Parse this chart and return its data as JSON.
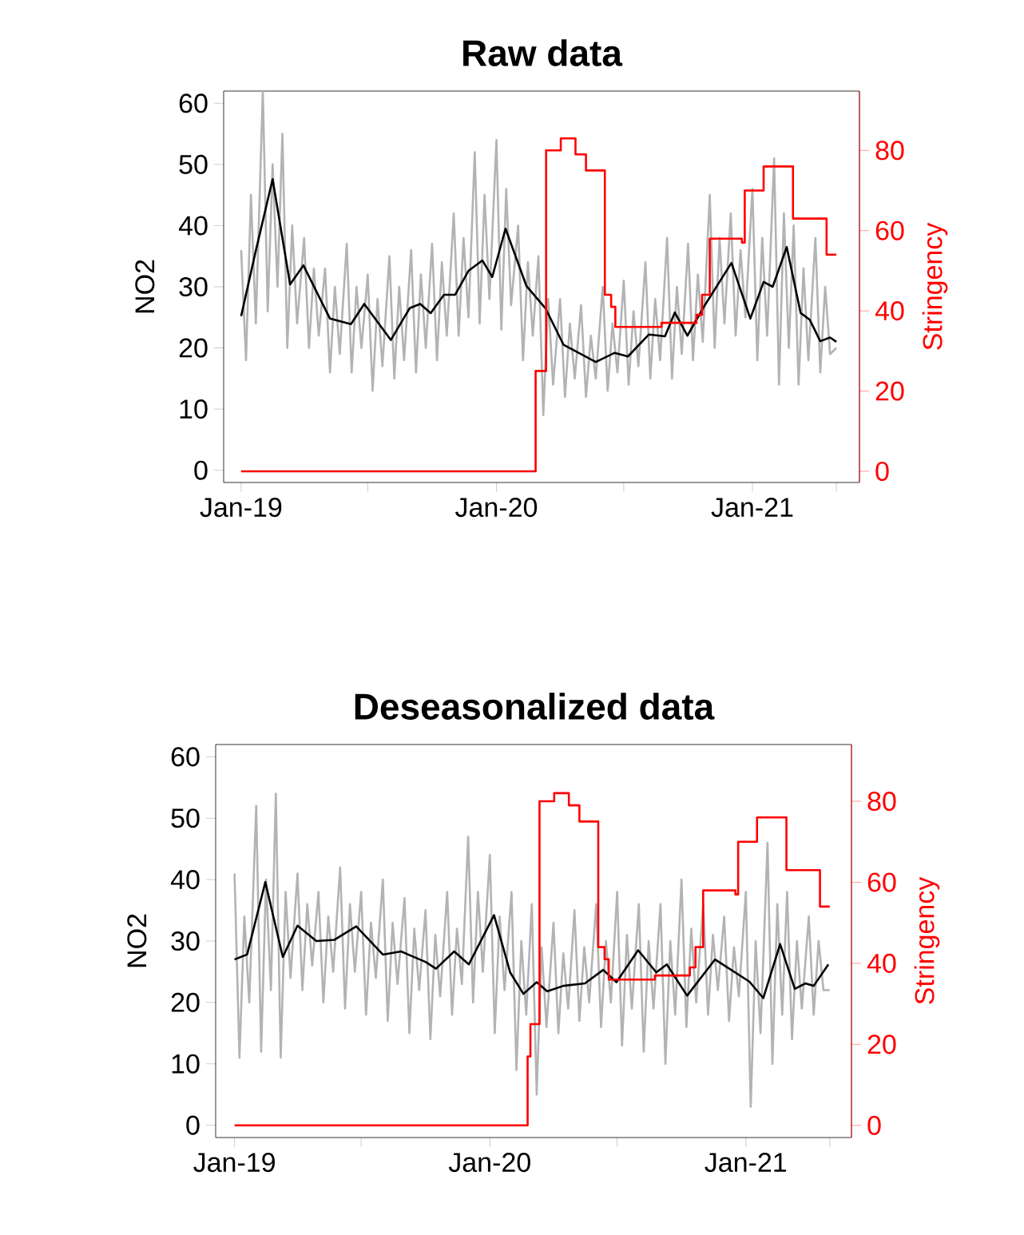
{
  "chart_data": [
    {
      "type": "line",
      "title": "Raw data",
      "ylabel": "NO2",
      "y2label": "Stringency",
      "xlim": [
        "2018-12-07",
        "2021-06-03"
      ],
      "xticks": [
        {
          "value": "2019-01-01",
          "label": "Jan-19"
        },
        {
          "value": "2019-07-01",
          "label": null
        },
        {
          "value": "2020-01-01",
          "label": "Jan-20"
        },
        {
          "value": "2020-07-01",
          "label": null
        },
        {
          "value": "2021-01-01",
          "label": "Jan-21"
        },
        {
          "value": "2021-05-01",
          "label": null
        }
      ],
      "ylim": [
        -2,
        62
      ],
      "yticks": [
        0,
        10,
        20,
        30,
        40,
        50,
        60
      ],
      "y2lim": [
        -2.8,
        94.8
      ],
      "y2ticks": [
        0,
        20,
        40,
        60,
        80
      ],
      "x": [
        "2019-01-01",
        "2019-01-08",
        "2019-01-15",
        "2019-01-22",
        "2019-02-01",
        "2019-02-08",
        "2019-02-15",
        "2019-02-22",
        "2019-03-01",
        "2019-03-08",
        "2019-03-15",
        "2019-03-22",
        "2019-04-01",
        "2019-04-08",
        "2019-04-15",
        "2019-04-22",
        "2019-05-01",
        "2019-05-08",
        "2019-05-15",
        "2019-05-22",
        "2019-06-01",
        "2019-06-08",
        "2019-06-15",
        "2019-06-22",
        "2019-07-01",
        "2019-07-08",
        "2019-07-15",
        "2019-07-22",
        "2019-08-01",
        "2019-08-08",
        "2019-08-15",
        "2019-08-22",
        "2019-09-01",
        "2019-09-08",
        "2019-09-15",
        "2019-09-22",
        "2019-10-01",
        "2019-10-08",
        "2019-10-15",
        "2019-10-22",
        "2019-11-01",
        "2019-11-08",
        "2019-11-15",
        "2019-11-22",
        "2019-12-01",
        "2019-12-08",
        "2019-12-15",
        "2019-12-22",
        "2020-01-01",
        "2020-01-08",
        "2020-01-15",
        "2020-01-22",
        "2020-02-01",
        "2020-02-08",
        "2020-02-15",
        "2020-02-22",
        "2020-03-01",
        "2020-03-08",
        "2020-03-15",
        "2020-03-22",
        "2020-04-01",
        "2020-04-08",
        "2020-04-15",
        "2020-04-22",
        "2020-05-01",
        "2020-05-08",
        "2020-05-15",
        "2020-05-22",
        "2020-06-01",
        "2020-06-08",
        "2020-06-15",
        "2020-06-22",
        "2020-07-01",
        "2020-07-08",
        "2020-07-15",
        "2020-07-22",
        "2020-08-01",
        "2020-08-08",
        "2020-08-15",
        "2020-08-22",
        "2020-09-01",
        "2020-09-08",
        "2020-09-15",
        "2020-09-22",
        "2020-10-01",
        "2020-10-08",
        "2020-10-15",
        "2020-10-22",
        "2020-11-01",
        "2020-11-08",
        "2020-11-15",
        "2020-11-22",
        "2020-12-01",
        "2020-12-08",
        "2020-12-15",
        "2020-12-22",
        "2021-01-01",
        "2021-01-08",
        "2021-01-15",
        "2021-01-22",
        "2021-02-01",
        "2021-02-08",
        "2021-02-15",
        "2021-02-22",
        "2021-03-01",
        "2021-03-08",
        "2021-03-15",
        "2021-03-22",
        "2021-04-01",
        "2021-04-08",
        "2021-04-15",
        "2021-04-22",
        "2021-05-01"
      ],
      "series": [
        {
          "color": "#b3b3b3",
          "values": [
            36,
            18,
            45,
            24,
            62,
            26,
            50,
            30,
            55,
            20,
            40,
            24,
            38,
            20,
            33,
            22,
            33,
            16,
            30,
            19,
            37,
            16,
            30,
            20,
            32,
            13,
            28,
            17,
            35,
            15,
            30,
            18,
            36,
            16,
            32,
            20,
            37,
            18,
            34,
            22,
            42,
            22,
            38,
            25,
            52,
            24,
            45,
            28,
            54,
            23,
            46,
            27,
            40,
            18,
            34,
            22,
            35,
            9,
            28,
            14,
            28,
            12,
            24,
            15,
            27,
            12,
            22,
            15,
            30,
            13,
            24,
            16,
            31,
            14,
            26,
            17,
            34,
            15,
            28,
            18,
            38,
            15,
            30,
            19,
            37,
            18,
            32,
            21,
            45,
            20,
            38,
            24,
            42,
            22,
            36,
            25,
            46,
            18,
            38,
            22,
            51,
            14,
            42,
            20,
            40,
            14,
            33,
            18,
            38,
            16,
            30,
            19,
            20
          ]
        },
        {
          "color": "#000000",
          "x": [
            "2019-01-01",
            "2019-01-21",
            "2019-02-15",
            "2019-03-12",
            "2019-03-31",
            "2019-05-08",
            "2019-06-07",
            "2019-06-26",
            "2019-08-03",
            "2019-08-30",
            "2019-09-14",
            "2019-09-29",
            "2019-10-18",
            "2019-11-03",
            "2019-11-22",
            "2019-12-12",
            "2019-12-26",
            "2020-01-14",
            "2020-02-13",
            "2020-03-11",
            "2020-04-06",
            "2020-05-22",
            "2020-06-18",
            "2020-07-07",
            "2020-08-06",
            "2020-08-29",
            "2020-09-12",
            "2020-09-30",
            "2020-10-25",
            "2020-12-02",
            "2020-12-29",
            "2021-01-17",
            "2021-01-30",
            "2021-02-19",
            "2021-03-11",
            "2021-03-24",
            "2021-04-08",
            "2021-04-22",
            "2021-05-01"
          ],
          "values": [
            25.2,
            35.4,
            47.6,
            30.4,
            33.5,
            24.8,
            23.9,
            27.2,
            21.3,
            26.5,
            27.2,
            25.7,
            28.7,
            28.7,
            32.6,
            34.3,
            31.6,
            39.5,
            30.1,
            26.5,
            20.5,
            17.7,
            19.2,
            18.6,
            22.2,
            21.9,
            25.8,
            22.0,
            27.0,
            33.9,
            24.8,
            30.8,
            30.0,
            36.5,
            25.7,
            24.6,
            21.1,
            21.7,
            21.0
          ]
        },
        {
          "type": "step",
          "axis": "y2",
          "color": "#ff0000",
          "x": [
            "2019-01-01",
            "2020-02-26",
            "2020-03-12",
            "2020-04-02",
            "2020-04-23",
            "2020-05-08",
            "2020-06-04",
            "2020-06-13",
            "2020-06-19",
            "2020-08-24",
            "2020-10-13",
            "2020-10-21",
            "2020-11-01",
            "2020-12-17",
            "2020-12-21",
            "2021-01-17",
            "2021-02-28",
            "2021-04-17",
            "2021-05-01"
          ],
          "values": [
            0,
            25,
            80,
            83,
            79,
            75,
            44,
            41,
            36,
            37,
            39,
            44,
            58,
            57,
            70,
            76,
            63,
            54,
            54
          ]
        }
      ]
    },
    {
      "type": "line",
      "title": "Deseasonalized data",
      "ylabel": "NO2",
      "y2label": "Stringency",
      "xlim": [
        "2018-12-05",
        "2021-06-01"
      ],
      "xticks": [
        {
          "value": "2019-01-01",
          "label": "Jan-19"
        },
        {
          "value": "2019-07-01",
          "label": null
        },
        {
          "value": "2020-01-01",
          "label": "Jan-20"
        },
        {
          "value": "2020-07-01",
          "label": null
        },
        {
          "value": "2021-01-01",
          "label": "Jan-21"
        },
        {
          "value": "2021-05-01",
          "label": null
        }
      ],
      "ylim": [
        -2,
        62
      ],
      "yticks": [
        0,
        10,
        20,
        30,
        40,
        50,
        60
      ],
      "y2lim": [
        -3,
        94
      ],
      "y2ticks": [
        0,
        20,
        40,
        60,
        80
      ],
      "x": [
        "2019-01-01",
        "2019-01-08",
        "2019-01-15",
        "2019-01-22",
        "2019-02-01",
        "2019-02-08",
        "2019-02-15",
        "2019-02-22",
        "2019-03-01",
        "2019-03-08",
        "2019-03-15",
        "2019-03-22",
        "2019-04-01",
        "2019-04-08",
        "2019-04-15",
        "2019-04-22",
        "2019-05-01",
        "2019-05-08",
        "2019-05-15",
        "2019-05-22",
        "2019-06-01",
        "2019-06-08",
        "2019-06-15",
        "2019-06-22",
        "2019-07-01",
        "2019-07-08",
        "2019-07-15",
        "2019-07-22",
        "2019-08-01",
        "2019-08-08",
        "2019-08-15",
        "2019-08-22",
        "2019-09-01",
        "2019-09-08",
        "2019-09-15",
        "2019-09-22",
        "2019-10-01",
        "2019-10-08",
        "2019-10-15",
        "2019-10-22",
        "2019-11-01",
        "2019-11-08",
        "2019-11-15",
        "2019-11-22",
        "2019-12-01",
        "2019-12-08",
        "2019-12-15",
        "2019-12-22",
        "2020-01-01",
        "2020-01-08",
        "2020-01-15",
        "2020-01-22",
        "2020-02-01",
        "2020-02-08",
        "2020-02-15",
        "2020-02-22",
        "2020-03-01",
        "2020-03-08",
        "2020-03-15",
        "2020-03-22",
        "2020-04-01",
        "2020-04-08",
        "2020-04-15",
        "2020-04-22",
        "2020-05-01",
        "2020-05-08",
        "2020-05-15",
        "2020-05-22",
        "2020-06-01",
        "2020-06-08",
        "2020-06-15",
        "2020-06-22",
        "2020-07-01",
        "2020-07-08",
        "2020-07-15",
        "2020-07-22",
        "2020-08-01",
        "2020-08-08",
        "2020-08-15",
        "2020-08-22",
        "2020-09-01",
        "2020-09-08",
        "2020-09-15",
        "2020-09-22",
        "2020-10-01",
        "2020-10-08",
        "2020-10-15",
        "2020-10-22",
        "2020-11-01",
        "2020-11-08",
        "2020-11-15",
        "2020-11-22",
        "2020-12-01",
        "2020-12-08",
        "2020-12-15",
        "2020-12-22",
        "2021-01-01",
        "2021-01-08",
        "2021-01-15",
        "2021-01-22",
        "2021-02-01",
        "2021-02-08",
        "2021-02-15",
        "2021-02-22",
        "2021-03-01",
        "2021-03-08",
        "2021-03-15",
        "2021-03-22",
        "2021-04-01",
        "2021-04-08",
        "2021-04-15",
        "2021-04-22",
        "2021-05-01"
      ],
      "series": [
        {
          "color": "#b3b3b3",
          "values": [
            41,
            11,
            34,
            20,
            52,
            12,
            40,
            22,
            54,
            11,
            38,
            24,
            41,
            22,
            36,
            26,
            38,
            20,
            34,
            25,
            42,
            19,
            36,
            25,
            38,
            18,
            33,
            24,
            40,
            17,
            33,
            23,
            37,
            15,
            32,
            22,
            35,
            14,
            31,
            21,
            38,
            18,
            32,
            23,
            47,
            20,
            38,
            25,
            44,
            15,
            34,
            22,
            38,
            9,
            30,
            18,
            36,
            5,
            29,
            16,
            33,
            15,
            28,
            19,
            35,
            17,
            29,
            20,
            36,
            16,
            30,
            20,
            38,
            13,
            31,
            19,
            36,
            12,
            30,
            19,
            36,
            10,
            30,
            18,
            40,
            16,
            32,
            20,
            36,
            18,
            31,
            22,
            34,
            17,
            29,
            21,
            38,
            3,
            30,
            15,
            46,
            10,
            36,
            18,
            38,
            14,
            30,
            19,
            34,
            18,
            30,
            22,
            22
          ]
        },
        {
          "color": "#000000",
          "x": [
            "2019-01-01",
            "2019-01-19",
            "2019-02-14",
            "2019-03-11",
            "2019-04-01",
            "2019-04-28",
            "2019-05-24",
            "2019-06-24",
            "2019-08-01",
            "2019-08-27",
            "2019-10-01",
            "2019-10-16",
            "2019-11-11",
            "2019-12-02",
            "2020-01-07",
            "2020-01-30",
            "2020-02-18",
            "2020-03-08",
            "2020-03-23",
            "2020-04-15",
            "2020-05-16",
            "2020-06-11",
            "2020-06-30",
            "2020-07-31",
            "2020-08-26",
            "2020-09-10",
            "2020-10-09",
            "2020-11-18",
            "2021-01-06",
            "2021-01-26",
            "2021-02-19",
            "2021-03-12",
            "2021-03-27",
            "2021-04-08",
            "2021-04-29"
          ],
          "values": [
            27.0,
            27.8,
            39.6,
            27.4,
            32.5,
            30.0,
            30.2,
            32.4,
            27.8,
            28.3,
            26.6,
            25.5,
            28.3,
            26.2,
            34.2,
            24.9,
            21.4,
            23.3,
            21.8,
            22.7,
            23.1,
            25.3,
            23.3,
            28.5,
            24.9,
            26.2,
            21.1,
            27.0,
            23.4,
            20.7,
            29.5,
            22.2,
            23.1,
            22.7,
            26.2
          ]
        },
        {
          "type": "step",
          "axis": "y2",
          "color": "#ff0000",
          "x": [
            "2019-01-01",
            "2020-02-24",
            "2020-02-28",
            "2020-03-12",
            "2020-04-02",
            "2020-04-23",
            "2020-05-08",
            "2020-06-04",
            "2020-06-13",
            "2020-06-19",
            "2020-08-24",
            "2020-10-13",
            "2020-10-21",
            "2020-11-01",
            "2020-12-17",
            "2020-12-21",
            "2021-01-17",
            "2021-02-28",
            "2021-04-17",
            "2021-05-01"
          ],
          "values": [
            0,
            17,
            25,
            80,
            82,
            79,
            75,
            44,
            41,
            36,
            37,
            39,
            44,
            58,
            57,
            70,
            76,
            63,
            54,
            54
          ]
        }
      ]
    }
  ]
}
